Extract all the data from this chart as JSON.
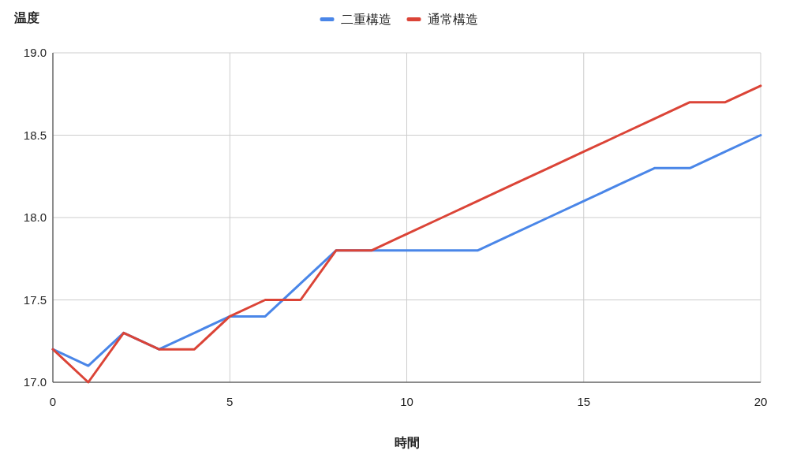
{
  "chart_data": {
    "type": "line",
    "ylabel": "温度",
    "xlabel": "時間",
    "x": [
      0,
      1,
      2,
      3,
      4,
      5,
      6,
      7,
      8,
      9,
      10,
      11,
      12,
      13,
      14,
      15,
      16,
      17,
      18,
      19,
      20
    ],
    "series": [
      {
        "name": "二重構造",
        "color": "#4a86e8",
        "values": [
          17.2,
          17.1,
          17.3,
          17.2,
          17.3,
          17.4,
          17.4,
          17.6,
          17.8,
          17.8,
          17.8,
          17.8,
          17.8,
          17.9,
          18.0,
          18.1,
          18.2,
          18.3,
          18.3,
          18.4,
          18.5
        ]
      },
      {
        "name": "通常構造",
        "color": "#db4437",
        "values": [
          17.2,
          17.0,
          17.3,
          17.2,
          17.2,
          17.4,
          17.5,
          17.5,
          17.8,
          17.8,
          17.9,
          18.0,
          18.1,
          18.2,
          18.3,
          18.4,
          18.5,
          18.6,
          18.7,
          18.7,
          18.8
        ]
      }
    ],
    "xlim": [
      0,
      20
    ],
    "xticks": [
      0,
      5,
      10,
      15,
      20
    ],
    "ylim": [
      17,
      19
    ],
    "yticks": [
      {
        "value": 17,
        "label": "17.0"
      },
      {
        "value": 17.5,
        "label": "17.5"
      },
      {
        "value": 18,
        "label": "18.0"
      },
      {
        "value": 18.5,
        "label": "18.5"
      },
      {
        "value": 19,
        "label": "19.0"
      }
    ],
    "grid": true,
    "legend": "top",
    "marker": "none",
    "line_style": "solid"
  }
}
